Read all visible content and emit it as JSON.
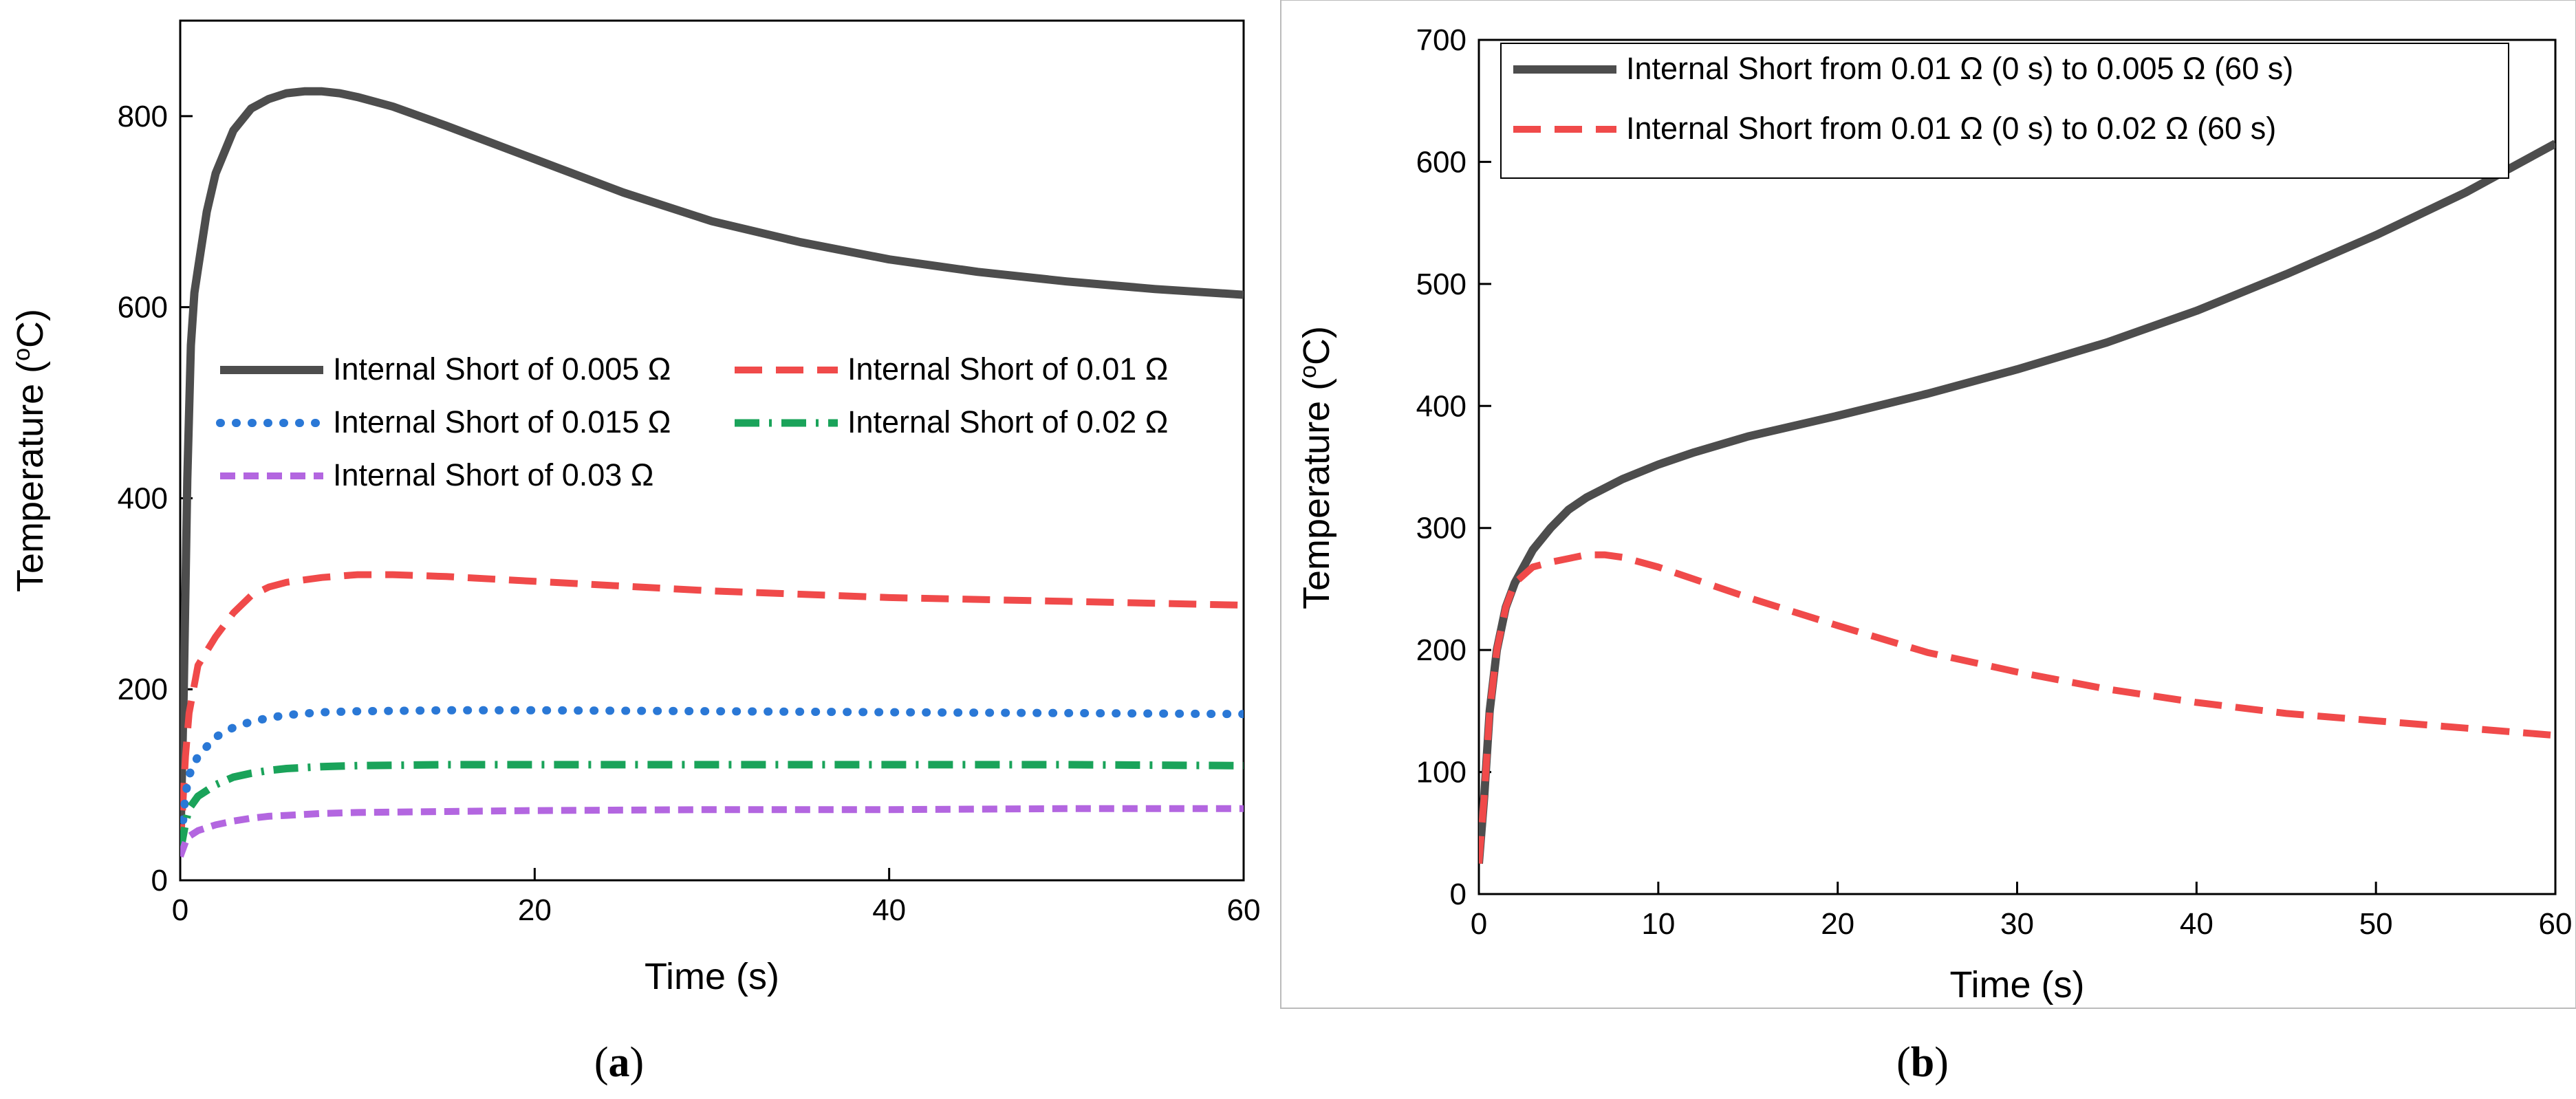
{
  "chart_data": [
    {
      "type": "line",
      "panel_label": "a",
      "title": "",
      "xlabel": "Time (s)",
      "ylabel": {
        "pre": "Temperature (",
        "sup": "o",
        "post": "C)"
      },
      "xlim": [
        0,
        60
      ],
      "ylim": [
        0,
        900
      ],
      "xticks": [
        0,
        20,
        40,
        60
      ],
      "yticks": [
        0,
        200,
        400,
        600,
        800
      ],
      "legend_position": "center, two columns",
      "series": [
        {
          "name": "Internal Short of 0.005 Ω",
          "color": "#4d4d4d",
          "style": "solid",
          "x": [
            0,
            0.2,
            0.4,
            0.6,
            0.8,
            1,
            1.5,
            2,
            3,
            4,
            5,
            6,
            7,
            8,
            9,
            10,
            12,
            15,
            20,
            25,
            30,
            35,
            40,
            45,
            50,
            55,
            60
          ],
          "y": [
            30,
            200,
            420,
            560,
            615,
            640,
            700,
            740,
            785,
            808,
            818,
            824,
            826,
            826,
            824,
            820,
            810,
            790,
            755,
            720,
            690,
            668,
            650,
            637,
            627,
            619,
            613
          ]
        },
        {
          "name": "Internal Short of 0.01 Ω",
          "color": "#f04a4a",
          "style": "dash",
          "x": [
            0,
            0.3,
            0.5,
            1,
            2,
            3,
            4,
            5,
            6,
            8,
            10,
            12,
            15,
            20,
            30,
            40,
            50,
            60
          ],
          "y": [
            30,
            130,
            175,
            225,
            255,
            280,
            298,
            307,
            312,
            317,
            320,
            320,
            318,
            313,
            303,
            296,
            292,
            288
          ]
        },
        {
          "name": "Internal Short of 0.015 Ω",
          "color": "#2a78d6",
          "style": "dot",
          "x": [
            0,
            0.3,
            0.5,
            1,
            2,
            3,
            4,
            5,
            6,
            8,
            10,
            15,
            20,
            30,
            40,
            50,
            60
          ],
          "y": [
            30,
            90,
            110,
            130,
            150,
            160,
            166,
            170,
            173,
            176,
            177,
            178,
            178,
            177,
            176,
            175,
            174
          ]
        },
        {
          "name": "Internal Short of 0.02 Ω",
          "color": "#1aa35a",
          "style": "dashdot",
          "x": [
            0,
            0.3,
            0.5,
            1,
            2,
            3,
            4,
            5,
            6,
            8,
            10,
            15,
            20,
            30,
            40,
            50,
            60
          ],
          "y": [
            30,
            60,
            75,
            88,
            100,
            108,
            112,
            115,
            117,
            119,
            120,
            121,
            121,
            121,
            121,
            121,
            120
          ]
        },
        {
          "name": "Internal Short of 0.03 Ω",
          "color": "#b366e0",
          "style": "shortdash",
          "x": [
            0,
            0.3,
            0.5,
            1,
            2,
            3,
            4,
            5,
            6,
            8,
            10,
            15,
            20,
            30,
            40,
            50,
            60
          ],
          "y": [
            25,
            40,
            46,
            52,
            58,
            62,
            65,
            67,
            68,
            70,
            71,
            72,
            73,
            74,
            74,
            75,
            75
          ]
        }
      ]
    },
    {
      "type": "line",
      "panel_label": "b",
      "title": "",
      "xlabel": "Time (s)",
      "ylabel": {
        "pre": "Temperature (",
        "sup": "o",
        "post": "C)"
      },
      "xlim": [
        0,
        60
      ],
      "ylim": [
        0,
        700
      ],
      "xticks": [
        0,
        10,
        20,
        30,
        40,
        50,
        60
      ],
      "yticks": [
        0,
        100,
        200,
        300,
        400,
        500,
        600,
        700
      ],
      "legend_position": "top-left",
      "series": [
        {
          "name": "Internal Short from 0.01 Ω (0 s) to 0.005 Ω (60 s)",
          "color": "#4d4d4d",
          "style": "solid",
          "x": [
            0,
            0.3,
            0.6,
            1,
            1.5,
            2,
            3,
            4,
            5,
            6,
            8,
            10,
            12,
            15,
            20,
            25,
            30,
            35,
            40,
            45,
            50,
            55,
            60
          ],
          "y": [
            25,
            80,
            150,
            200,
            235,
            255,
            282,
            300,
            315,
            325,
            340,
            352,
            362,
            375,
            392,
            410,
            430,
            452,
            478,
            508,
            540,
            575,
            615
          ]
        },
        {
          "name": "Internal Short from 0.01 Ω (0 s) to 0.02 Ω (60 s)",
          "color": "#f04a4a",
          "style": "dash",
          "x": [
            0,
            0.3,
            0.6,
            1,
            1.5,
            2,
            3,
            4,
            5,
            6,
            7,
            8,
            10,
            12,
            15,
            20,
            25,
            30,
            35,
            40,
            45,
            50,
            55,
            60
          ],
          "y": [
            25,
            80,
            150,
            200,
            235,
            255,
            268,
            272,
            275,
            278,
            278,
            276,
            268,
            258,
            243,
            220,
            198,
            182,
            168,
            157,
            148,
            142,
            136,
            130
          ]
        }
      ]
    }
  ]
}
